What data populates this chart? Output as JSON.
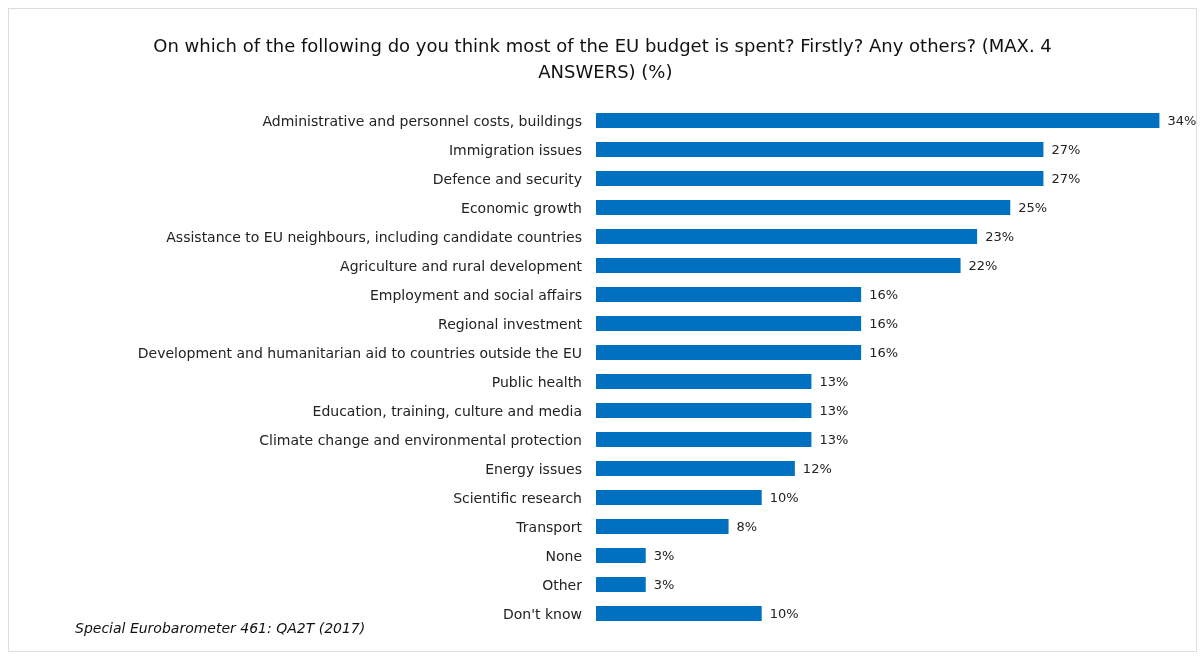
{
  "chart_data": {
    "type": "bar",
    "orientation": "horizontal",
    "title": "On which of the following do you think most of the EU budget is spent? Firstly? Any others? (MAX. 4 ANSWERS) (%)",
    "categories": [
      "Administrative and personnel costs, buildings",
      "Immigration issues",
      "Defence and security",
      "Economic growth",
      "Assistance to EU neighbours, including candidate countries",
      "Agriculture and rural development",
      "Employment and social affairs",
      "Regional investment",
      "Development and humanitarian aid to countries outside the EU",
      "Public health",
      "Education, training, culture and media",
      "Climate change and environmental protection",
      "Energy issues",
      "Scientific research",
      "Transport",
      "None",
      "Other",
      "Don't know"
    ],
    "values": [
      34,
      27,
      27,
      25,
      23,
      22,
      16,
      16,
      16,
      13,
      13,
      13,
      12,
      10,
      8,
      3,
      3,
      10
    ],
    "value_labels": [
      "34%",
      "27%",
      "27%",
      "25%",
      "23%",
      "22%",
      "16%",
      "16%",
      "16%",
      "13%",
      "13%",
      "13%",
      "12%",
      "10%",
      "8%",
      "3%",
      "3%",
      "10%"
    ],
    "color": "#0070c0",
    "annotations": [
      "Special Eurobarometer 461: QA2T (2017)"
    ]
  }
}
